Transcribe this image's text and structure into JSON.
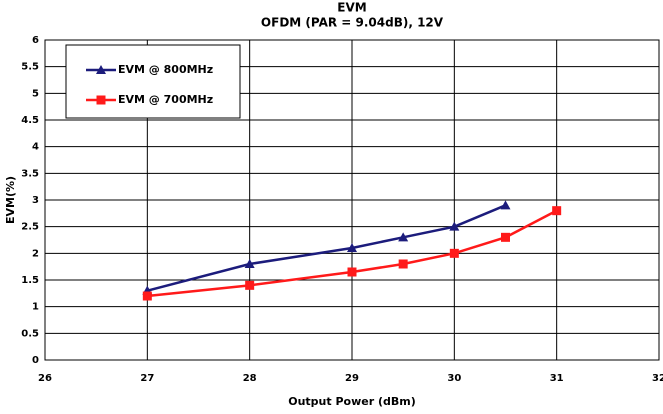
{
  "chart_data": {
    "type": "line",
    "title": "EVM",
    "subtitle": "OFDM (PAR = 9.04dB), 12V",
    "x_label": "Output Power (dBm)",
    "y_label": "EVM(%)",
    "xlim": [
      26,
      32
    ],
    "xticks": [
      26,
      27,
      28,
      29,
      30,
      31,
      32
    ],
    "ylim": [
      0,
      6
    ],
    "yticks": [
      0,
      0.5,
      1,
      1.5,
      2,
      2.5,
      3,
      3.5,
      4,
      4.5,
      5,
      5.5,
      6
    ],
    "grid": true,
    "legend": "upper left",
    "series": [
      {
        "name": "EVM @ 800MHz",
        "color": "#1c1c7c",
        "marker": "triangle",
        "x": [
          27,
          28,
          29,
          29.5,
          30,
          30.5
        ],
        "values": [
          1.3,
          1.8,
          2.1,
          2.3,
          2.5,
          2.9
        ]
      },
      {
        "name": "EVM @ 700MHz",
        "color": "#ff1a1a",
        "marker": "square",
        "x": [
          27,
          28,
          29,
          29.5,
          30,
          30.5,
          31
        ],
        "values": [
          1.2,
          1.4,
          1.65,
          1.8,
          2.0,
          2.3,
          2.8
        ]
      }
    ]
  }
}
